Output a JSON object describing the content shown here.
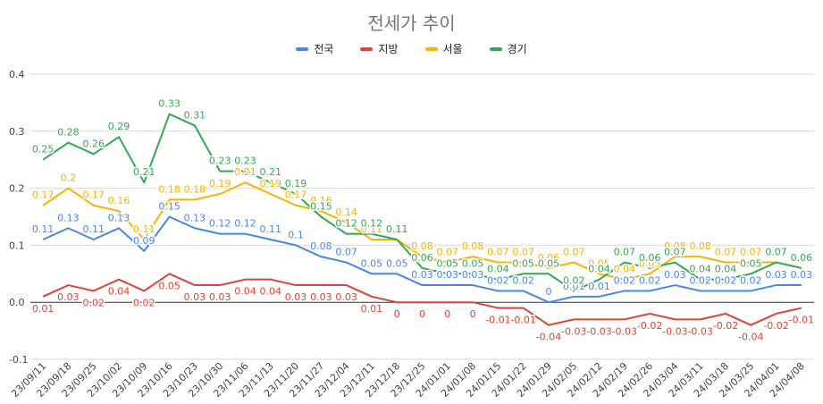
{
  "chart_data": {
    "type": "line",
    "title": "전세가 추이",
    "xlabel": "",
    "ylabel": "",
    "ylim": [
      -0.1,
      0.4
    ],
    "yticks": [
      -0.1,
      0.0,
      0.1,
      0.2,
      0.3,
      0.4
    ],
    "ytick_labels": [
      "-0.1",
      "0.0",
      "0.1",
      "0.2",
      "0.3",
      "0.4"
    ],
    "grid": true,
    "legend_position": "top",
    "categories": [
      "23/09/11",
      "23/09/18",
      "23/09/25",
      "23/10/02",
      "23/10/09",
      "23/10/16",
      "23/10/23",
      "23/10/30",
      "23/11/06",
      "23/11/13",
      "23/11/20",
      "23/11/27",
      "23/12/04",
      "23/12/11",
      "23/12/18",
      "23/12/25",
      "24/01/01",
      "24/01/08",
      "24/01/15",
      "24/01/22",
      "24/01/29",
      "24/02/05",
      "24/02/12",
      "24/02/19",
      "24/02/26",
      "24/03/04",
      "24/03/11",
      "24/03/18",
      "24/03/25",
      "24/04/01",
      "24/04/08"
    ],
    "series": [
      {
        "name": "전국",
        "color": "#4a86e8",
        "values": [
          0.11,
          0.13,
          0.11,
          0.13,
          0.09,
          0.15,
          0.13,
          0.12,
          0.12,
          0.11,
          0.1,
          0.08,
          0.07,
          0.05,
          0.05,
          0.03,
          0.03,
          0.03,
          0.02,
          0.02,
          0,
          0.01,
          0.01,
          0.02,
          0.02,
          0.03,
          0.02,
          0.02,
          0.02,
          0.03,
          0.03
        ],
        "labels": [
          "0.11",
          "0.13",
          "0.11",
          "0.13",
          "0.09",
          "0.15",
          "0.13",
          "0.12",
          "0.12",
          "0.11",
          "0.1",
          "0.08",
          "0.07",
          "0.05",
          "0.05",
          "0.03",
          "0.03",
          "0.03",
          "0.02",
          "0.02",
          "0",
          "0.01",
          "0.01",
          "0.02",
          "0.02",
          "0.03",
          "0.02",
          "0.02",
          "0.02",
          "0.03",
          "0.03"
        ]
      },
      {
        "name": "지방",
        "color": "#db4437",
        "values": [
          0.01,
          0.03,
          0.02,
          0.04,
          0.02,
          0.05,
          0.03,
          0.03,
          0.04,
          0.04,
          0.03,
          0.03,
          0.03,
          0.01,
          0,
          0,
          0,
          0,
          -0.01,
          -0.01,
          -0.04,
          -0.03,
          -0.03,
          -0.03,
          -0.02,
          -0.03,
          -0.03,
          -0.02,
          -0.04,
          -0.02,
          -0.01
        ],
        "labels": [
          "0.01",
          "0.03",
          "0.02",
          "0.04",
          "0.02",
          "0.05",
          "0.03",
          "0.03",
          "0.04",
          "0.04",
          "0.03",
          "0.03",
          "0.03",
          "0.01",
          "0",
          "0",
          "0",
          "0",
          "-0.01",
          "-0.01",
          "-0.04",
          "-0.03",
          "-0.03",
          "-0.03",
          "-0.02",
          "-0.03",
          "-0.03",
          "-0.02",
          "-0.04",
          "-0.02",
          "-0.01"
        ]
      },
      {
        "name": "서울",
        "color": "#f4b400",
        "values": [
          0.17,
          0.2,
          0.17,
          0.16,
          0.11,
          0.18,
          0.18,
          0.19,
          0.21,
          0.19,
          0.17,
          0.16,
          0.14,
          0.11,
          0.11,
          0.08,
          0.07,
          0.08,
          0.07,
          0.07,
          0.06,
          0.07,
          0.05,
          0.04,
          0.05,
          0.08,
          0.08,
          0.07,
          0.07,
          0.07,
          0.06
        ],
        "labels": [
          "0.17",
          "0.2",
          "0.17",
          "0.16",
          "0.11",
          "0.18",
          "0.18",
          "0.19",
          "0.21",
          "0.19",
          "0.17",
          "0.16",
          "0.14",
          "0.11",
          "0.11",
          "0.08",
          "0.07",
          "0.08",
          "0.07",
          "0.07",
          "0.06",
          "0.07",
          "0.05",
          "0.04",
          "0.05",
          "0.08",
          "0.08",
          "0.07",
          "0.07",
          "0.07",
          "0.06"
        ]
      },
      {
        "name": "경기",
        "color": "#34a853",
        "values": [
          0.25,
          0.28,
          0.26,
          0.29,
          0.21,
          0.33,
          0.31,
          0.23,
          0.23,
          0.21,
          0.19,
          0.15,
          0.12,
          0.12,
          0.11,
          0.06,
          0.05,
          0.05,
          0.04,
          0.05,
          0.05,
          0.02,
          0.04,
          0.07,
          0.06,
          0.07,
          0.04,
          0.04,
          0.05,
          0.07,
          0.06
        ],
        "labels": [
          "0.25",
          "0.28",
          "0.26",
          "0.29",
          "0.21",
          "0.33",
          "0.31",
          "0.23",
          "0.23",
          "0.21",
          "0.19",
          "0.15",
          "0.12",
          "0.12",
          "0.11",
          "0.06",
          "0.05",
          "0.05",
          "0.04",
          "0.05",
          "0.05",
          "0.02",
          "0.04",
          "0.07",
          "0.06",
          "0.07",
          "0.04",
          "0.04",
          "0.05",
          "0.07",
          "0.06"
        ]
      }
    ]
  }
}
